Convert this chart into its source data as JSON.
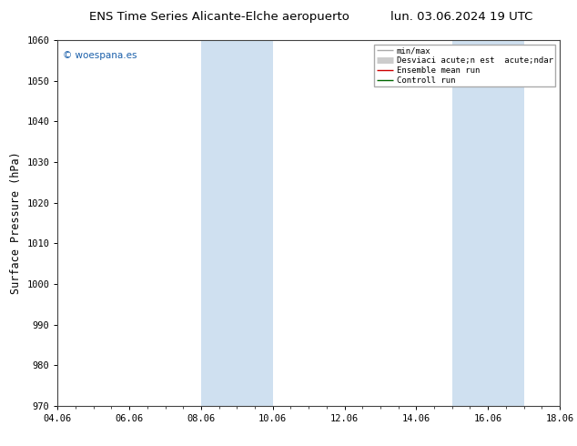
{
  "title_left": "ENS Time Series Alicante-Elche aeropuerto",
  "title_right": "lun. 03.06.2024 19 UTC",
  "ylabel": "Surface Pressure (hPa)",
  "ylim": [
    970,
    1060
  ],
  "yticks": [
    970,
    980,
    990,
    1000,
    1010,
    1020,
    1030,
    1040,
    1050,
    1060
  ],
  "xlabels": [
    "04.06",
    "06.06",
    "08.06",
    "10.06",
    "12.06",
    "14.06",
    "16.06",
    "18.06"
  ],
  "xtick_positions": [
    0,
    2,
    4,
    6,
    8,
    10,
    12,
    14
  ],
  "shaded_bands": [
    {
      "xmin": 4.0,
      "xmax": 5.0,
      "color": "#cfe0f0"
    },
    {
      "xmin": 5.0,
      "xmax": 6.0,
      "color": "#cfe0f0"
    },
    {
      "xmin": 11.0,
      "xmax": 12.0,
      "color": "#cfe0f0"
    },
    {
      "xmin": 12.0,
      "xmax": 13.0,
      "color": "#cfe0f0"
    }
  ],
  "watermark": "© woespana.es",
  "watermark_color": "#1a5faa",
  "legend_labels": [
    "min/max",
    "Desviaci acute;n est  acute;ndar",
    "Ensemble mean run",
    "Controll run"
  ],
  "legend_colors": [
    "#aaaaaa",
    "#cccccc",
    "#cc0000",
    "#006600"
  ],
  "legend_lws": [
    1.0,
    5.0,
    1.0,
    1.0
  ],
  "bg_color": "#ffffff",
  "plot_bg_color": "#ffffff",
  "tick_label_fontsize": 7.5,
  "axis_label_fontsize": 8.5,
  "title_fontsize": 9.5
}
